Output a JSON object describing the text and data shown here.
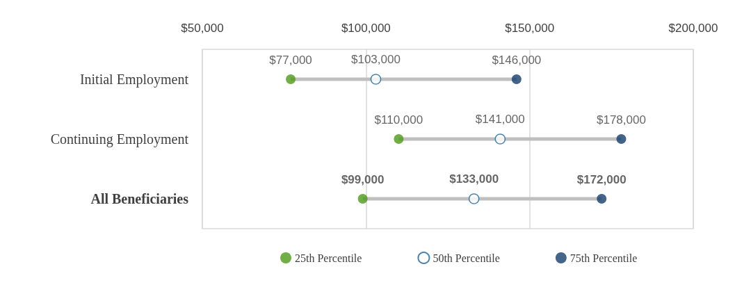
{
  "chart_data": {
    "type": "scatter",
    "orientation": "horizontal",
    "categories": [
      "Initial Employment",
      "Continuing Employment",
      "All Beneficiaries"
    ],
    "xlim": [
      50000,
      200000
    ],
    "xticks": [
      {
        "value": 50000,
        "label": "$50,000"
      },
      {
        "value": 100000,
        "label": "$100,000"
      },
      {
        "value": 150000,
        "label": "$150,000"
      },
      {
        "value": 200000,
        "label": "$200,000"
      }
    ],
    "grid": "x",
    "legend": "bottom",
    "marker": "circle",
    "series": [
      {
        "name": "25th Percentile",
        "color": "#4e9a1a",
        "values": [
          77000,
          110000,
          99000
        ],
        "value_labels": [
          "$77,000",
          "$110,000",
          "$99,000"
        ]
      },
      {
        "name": "50th Percentile",
        "color": "#1f6496",
        "values": [
          103000,
          141000,
          133000
        ],
        "value_labels": [
          "$103,000",
          "$141,000",
          "$133,000"
        ]
      },
      {
        "name": "75th Percentile",
        "color": "#173d6b",
        "values": [
          146000,
          178000,
          172000
        ],
        "value_labels": [
          "$146,000",
          "$178,000",
          "$172,000"
        ]
      }
    ]
  }
}
